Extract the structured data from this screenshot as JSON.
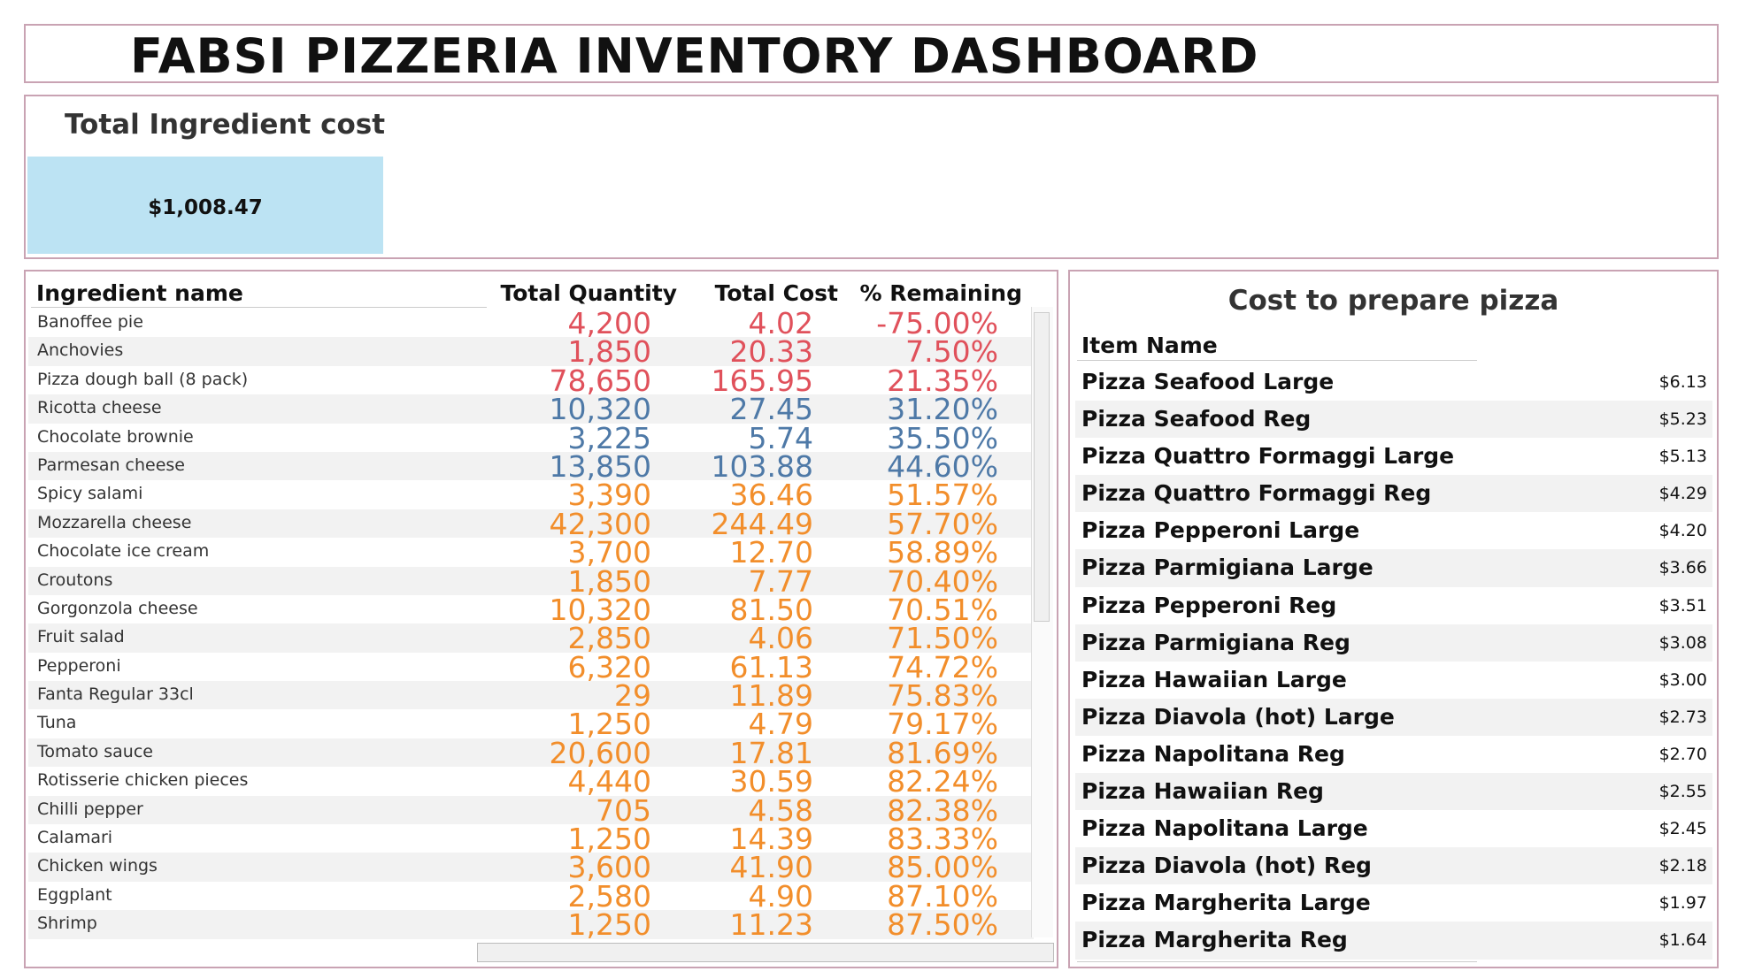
{
  "header": {
    "title": "FABSI PIZZERIA INVENTORY DASHBOARD"
  },
  "kpi": {
    "label": "Total Ingredient cost",
    "value": "$1,008.47",
    "box_color": "#bce3f3"
  },
  "colors": {
    "red": "#e0515b",
    "blue": "#4e79a7",
    "orange": "#f28e2b",
    "border": "#c9a3b3"
  },
  "inventory": {
    "headers": {
      "name": "Ingredient name",
      "qty": "Total Quantity",
      "cost": "Total Cost",
      "remaining": "% Remaining"
    },
    "rows": [
      {
        "name": "Banoffee pie",
        "qty": "4,200",
        "cost": "4.02",
        "remaining": "-75.00%",
        "color": "red"
      },
      {
        "name": "Anchovies",
        "qty": "1,850",
        "cost": "20.33",
        "remaining": "7.50%",
        "color": "red"
      },
      {
        "name": "Pizza dough ball (8 pack)",
        "qty": "78,650",
        "cost": "165.95",
        "remaining": "21.35%",
        "color": "red"
      },
      {
        "name": "Ricotta cheese",
        "qty": "10,320",
        "cost": "27.45",
        "remaining": "31.20%",
        "color": "blue"
      },
      {
        "name": "Chocolate brownie",
        "qty": "3,225",
        "cost": "5.74",
        "remaining": "35.50%",
        "color": "blue"
      },
      {
        "name": "Parmesan cheese",
        "qty": "13,850",
        "cost": "103.88",
        "remaining": "44.60%",
        "color": "blue"
      },
      {
        "name": "Spicy salami",
        "qty": "3,390",
        "cost": "36.46",
        "remaining": "51.57%",
        "color": "orange"
      },
      {
        "name": "Mozzarella cheese",
        "qty": "42,300",
        "cost": "244.49",
        "remaining": "57.70%",
        "color": "orange"
      },
      {
        "name": "Chocolate ice cream",
        "qty": "3,700",
        "cost": "12.70",
        "remaining": "58.89%",
        "color": "orange"
      },
      {
        "name": "Croutons",
        "qty": "1,850",
        "cost": "7.77",
        "remaining": "70.40%",
        "color": "orange"
      },
      {
        "name": "Gorgonzola cheese",
        "qty": "10,320",
        "cost": "81.50",
        "remaining": "70.51%",
        "color": "orange"
      },
      {
        "name": "Fruit salad",
        "qty": "2,850",
        "cost": "4.06",
        "remaining": "71.50%",
        "color": "orange"
      },
      {
        "name": "Pepperoni",
        "qty": "6,320",
        "cost": "61.13",
        "remaining": "74.72%",
        "color": "orange"
      },
      {
        "name": "Fanta Regular 33cl",
        "qty": "29",
        "cost": "11.89",
        "remaining": "75.83%",
        "color": "orange"
      },
      {
        "name": "Tuna",
        "qty": "1,250",
        "cost": "4.79",
        "remaining": "79.17%",
        "color": "orange"
      },
      {
        "name": "Tomato sauce",
        "qty": "20,600",
        "cost": "17.81",
        "remaining": "81.69%",
        "color": "orange"
      },
      {
        "name": "Rotisserie chicken pieces",
        "qty": "4,440",
        "cost": "30.59",
        "remaining": "82.24%",
        "color": "orange"
      },
      {
        "name": "Chilli pepper",
        "qty": "705",
        "cost": "4.58",
        "remaining": "82.38%",
        "color": "orange"
      },
      {
        "name": "Calamari",
        "qty": "1,250",
        "cost": "14.39",
        "remaining": "83.33%",
        "color": "orange"
      },
      {
        "name": "Chicken wings",
        "qty": "3,600",
        "cost": "41.90",
        "remaining": "85.00%",
        "color": "orange"
      },
      {
        "name": "Eggplant",
        "qty": "2,580",
        "cost": "4.90",
        "remaining": "87.10%",
        "color": "orange"
      },
      {
        "name": "Shrimp",
        "qty": "1,250",
        "cost": "11.23",
        "remaining": "87.50%",
        "color": "orange"
      }
    ]
  },
  "pizza": {
    "title": "Cost to prepare pizza",
    "column_header": "Item Name",
    "rows": [
      {
        "name": "Pizza Seafood Large",
        "cost": "$6.13"
      },
      {
        "name": "Pizza Seafood Reg",
        "cost": "$5.23"
      },
      {
        "name": "Pizza Quattro Formaggi Large",
        "cost": "$5.13"
      },
      {
        "name": "Pizza Quattro Formaggi Reg",
        "cost": "$4.29"
      },
      {
        "name": "Pizza Pepperoni Large",
        "cost": "$4.20"
      },
      {
        "name": "Pizza Parmigiana Large",
        "cost": "$3.66"
      },
      {
        "name": "Pizza Pepperoni Reg",
        "cost": "$3.51"
      },
      {
        "name": "Pizza Parmigiana Reg",
        "cost": "$3.08"
      },
      {
        "name": "Pizza Hawaiian Large",
        "cost": "$3.00"
      },
      {
        "name": "Pizza Diavola (hot) Large",
        "cost": "$2.73"
      },
      {
        "name": "Pizza Napolitana Reg",
        "cost": "$2.70"
      },
      {
        "name": "Pizza Hawaiian Reg",
        "cost": "$2.55"
      },
      {
        "name": "Pizza Napolitana Large",
        "cost": "$2.45"
      },
      {
        "name": "Pizza Diavola (hot) Reg",
        "cost": "$2.18"
      },
      {
        "name": "Pizza Margherita Large",
        "cost": "$1.97"
      },
      {
        "name": "Pizza Margherita Reg",
        "cost": "$1.64"
      }
    ]
  }
}
